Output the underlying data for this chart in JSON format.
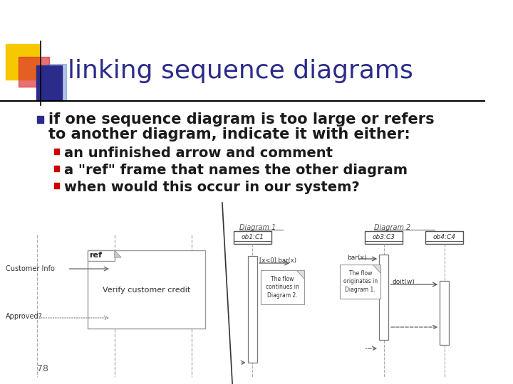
{
  "title": "linking sequence diagrams",
  "title_color": "#2b2b8b",
  "title_fontsize": 26,
  "bg_color": "#ffffff",
  "bullet1_line1": "if one sequence diagram is too large or refers",
  "bullet1_line2": "to another diagram, indicate it with either:",
  "bullet1_color": "#1a1a1a",
  "bullet1_fontsize": 15,
  "sub_bullets": [
    "an unfinished arrow and comment",
    "a \"ref\" frame that names the other diagram",
    "when would this occur in our system?"
  ],
  "sub_bullet_color": "#1a1a1a",
  "sub_bullet_fontsize": 14,
  "bullet_marker_color": "#2b2b8b",
  "sub_marker_color": "#cc0000",
  "slide_number": "78",
  "header_line_color": "#000000",
  "deco_yellow": "#f5c800",
  "deco_red": "#dd3333",
  "deco_red_alpha": 0.7,
  "deco_blue": "#2b2b8b",
  "deco_blue_light": "#6688cc",
  "deco_blue_light_alpha": 0.5
}
